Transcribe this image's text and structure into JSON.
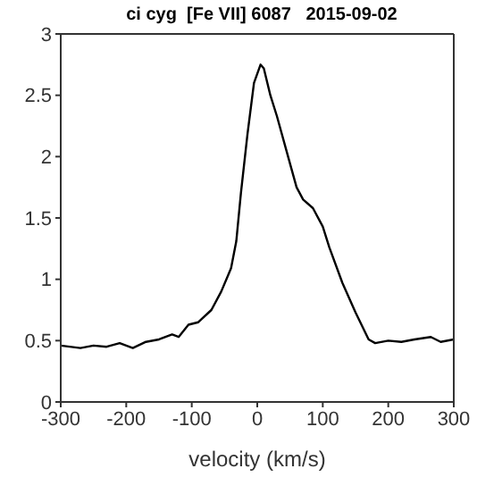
{
  "chart_data": {
    "type": "line",
    "title": "ci cyg  [Fe VII] 6087   2015-09-02",
    "xlabel": "velocity (km/s)",
    "x": [
      -300,
      -270,
      -250,
      -230,
      -210,
      -190,
      -170,
      -150,
      -130,
      -120,
      -105,
      -90,
      -70,
      -55,
      -40,
      -32,
      -25,
      -15,
      -5,
      5,
      10,
      20,
      30,
      45,
      60,
      70,
      85,
      100,
      110,
      130,
      150,
      170,
      180,
      200,
      220,
      240,
      265,
      280,
      300
    ],
    "series": [
      {
        "color": "#000000",
        "values": [
          0.46,
          0.44,
          0.46,
          0.45,
          0.48,
          0.44,
          0.49,
          0.51,
          0.55,
          0.53,
          0.63,
          0.65,
          0.75,
          0.9,
          1.09,
          1.31,
          1.7,
          2.18,
          2.6,
          2.75,
          2.72,
          2.5,
          2.33,
          2.04,
          1.75,
          1.65,
          1.58,
          1.43,
          1.26,
          0.97,
          0.73,
          0.51,
          0.48,
          0.5,
          0.49,
          0.51,
          0.53,
          0.49,
          0.51
        ]
      }
    ],
    "xlim": [
      -300,
      300
    ],
    "xticks": [
      -300,
      -200,
      -100,
      0,
      100,
      200,
      300
    ],
    "ylim": [
      0,
      3
    ],
    "yticks": [
      0,
      0.5,
      1,
      1.5,
      2,
      2.5,
      3
    ],
    "grid": false,
    "legend": false,
    "marker": "none",
    "line_style": "solid"
  }
}
